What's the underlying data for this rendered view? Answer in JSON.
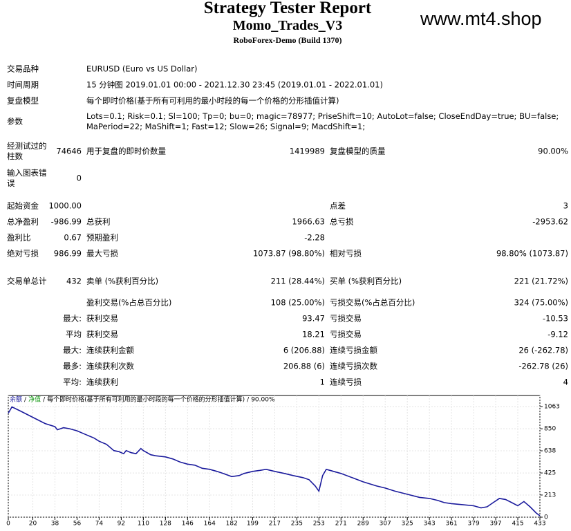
{
  "header": {
    "title": "Strategy Tester Report",
    "subtitle": "Momo_Trades_V3",
    "build": "RoboForex-Demo (Build 1370)",
    "watermark": "www.mt4.shop"
  },
  "report": {
    "rows": [
      [
        "交易品种",
        null,
        "EURUSD (Euro vs US Dollar)",
        null,
        null,
        null
      ],
      [
        "时间周期",
        null,
        "15 分钟图 2019.01.01 00:00 - 2021.12.30 23:45 (2019.01.01 - 2022.01.01)",
        null,
        null,
        null
      ],
      [
        "复盘模型",
        null,
        "每个即时价格(基于所有可利用的最小时段的每一个价格的分形插值计算)",
        null,
        null,
        null
      ],
      [
        "参数",
        null,
        "Lots=0.1; Risk=0.1; Sl=100; Tp=0; bu=0; magic=78977; PriseShift=10; AutoLot=false; CloseEndDay=true; BU=false; MaPeriod=22; MaShift=1; Fast=12; Slow=26; Signal=9; MacdShift=1;",
        null,
        null,
        null
      ],
      [
        "经测试过的柱数",
        "74646",
        "用于复盘的即时价数量",
        "1419989",
        "复盘模型的质量",
        "90.00%"
      ],
      [
        "输入图表错误",
        "0",
        null,
        null,
        null,
        null
      ],
      [
        "起始资金",
        "1000.00",
        null,
        null,
        "点差",
        "3"
      ],
      [
        "总净盈利",
        "-986.99",
        "总获利",
        "1966.63",
        "总亏损",
        "-2953.62"
      ],
      [
        "盈利比",
        "0.67",
        "预期盈利",
        "-2.28",
        null,
        null
      ],
      [
        "绝对亏损",
        "986.99",
        "最大亏损",
        "1073.87 (98.80%)",
        "相对亏损",
        "98.80% (1073.87)"
      ],
      [
        "交易单总计",
        "432",
        "卖单 (%获利百分比)",
        "211 (28.44%)",
        "买单 (%获利百分比)",
        "221 (21.72%)"
      ],
      [
        null,
        null,
        "盈利交易(%占总百分比)",
        "108 (25.00%)",
        "亏损交易(%占总百分比)",
        "324 (75.00%)"
      ],
      [
        null,
        "最大:",
        "获利交易",
        "93.47",
        "亏损交易",
        "-10.53"
      ],
      [
        null,
        "平均",
        "获利交易",
        "18.21",
        "亏损交易",
        "-9.12"
      ],
      [
        null,
        "最大:",
        "连续获利金额",
        "6 (206.88)",
        "连续亏损金额",
        "26 (-262.78)"
      ],
      [
        null,
        "最多:",
        "连续获利次数",
        "206.88 (6)",
        "连续亏损次数",
        "-262.78 (26)"
      ],
      [
        null,
        "平均:",
        "连续获利",
        "1",
        "连续亏损",
        "4"
      ]
    ]
  },
  "chart_data": {
    "type": "line",
    "legend_separator": "/",
    "equity_label": "净值",
    "model_note": "每个即时价格(基于所有可利用的最小时段的每一个价格的分形插值计算)",
    "quality": "90.00%",
    "x": [
      0,
      3,
      10,
      20,
      30,
      38,
      40,
      45,
      50,
      56,
      62,
      70,
      74,
      80,
      86,
      90,
      94,
      96,
      100,
      104,
      108,
      110,
      116,
      120,
      128,
      134,
      140,
      146,
      152,
      158,
      164,
      170,
      175,
      182,
      188,
      192,
      199,
      205,
      210,
      217,
      225,
      232,
      240,
      245,
      250,
      253,
      256,
      259,
      262,
      268,
      271,
      280,
      289,
      300,
      307,
      315,
      325,
      335,
      343,
      350,
      355,
      361,
      370,
      379,
      385,
      390,
      395,
      400,
      405,
      410,
      415,
      420,
      425,
      430,
      433
    ],
    "series": [
      {
        "name": "余额",
        "color": "#1a1a9c",
        "values": [
          1000,
          1060,
          1020,
          960,
          900,
          870,
          840,
          860,
          850,
          830,
          800,
          760,
          730,
          700,
          640,
          630,
          610,
          640,
          620,
          610,
          660,
          640,
          600,
          590,
          580,
          560,
          530,
          510,
          500,
          470,
          460,
          440,
          420,
          390,
          400,
          420,
          440,
          450,
          460,
          440,
          420,
          400,
          380,
          360,
          300,
          250,
          400,
          460,
          450,
          430,
          420,
          380,
          340,
          300,
          280,
          250,
          220,
          190,
          180,
          160,
          140,
          130,
          120,
          110,
          90,
          100,
          140,
          180,
          170,
          140,
          110,
          150,
          100,
          40,
          13
        ]
      }
    ],
    "xlim": [
      0,
      433
    ],
    "ylim": [
      0,
      1170
    ],
    "xticks": [
      0,
      20,
      38,
      56,
      74,
      92,
      110,
      128,
      146,
      164,
      182,
      199,
      217,
      235,
      253,
      271,
      289,
      307,
      325,
      343,
      361,
      379,
      397,
      415,
      433
    ],
    "yticks": [
      0,
      213,
      425,
      638,
      850,
      1063
    ],
    "grid": true
  }
}
